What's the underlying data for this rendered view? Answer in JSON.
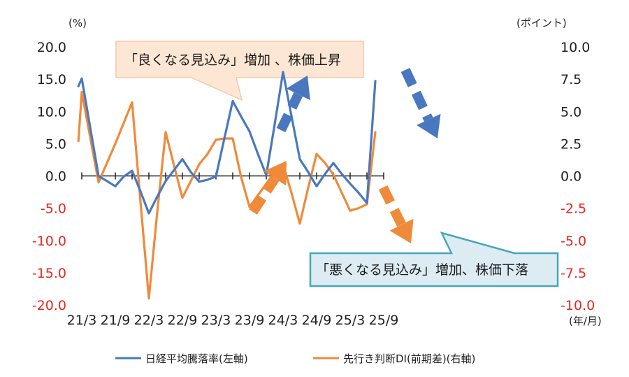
{
  "chart_data": {
    "type": "line",
    "title": "",
    "left_unit": "(%)",
    "right_unit": "(ポイント)",
    "x_unit": "(年/月)",
    "x_tick_labels": [
      "21/3",
      "21/9",
      "22/3",
      "22/9",
      "23/3",
      "23/9",
      "24/3",
      "24/9",
      "25/3",
      "25/9"
    ],
    "x_periods": [
      "21/3",
      "21/6",
      "21/9",
      "21/12",
      "22/3",
      "22/6",
      "22/9",
      "22/12",
      "23/3",
      "23/6",
      "23/9",
      "23/12",
      "24/3",
      "24/6",
      "24/9",
      "24/12",
      "25/3",
      "25/6",
      "25/9"
    ],
    "left_axis": {
      "ylim": [
        -20,
        20
      ],
      "ticks": [
        "20.0",
        "15.0",
        "10.0",
        "5.0",
        "0.0",
        "-5.0",
        "-10.0",
        "-15.0",
        "-20.0"
      ]
    },
    "right_axis": {
      "ylim": [
        -10,
        10
      ],
      "ticks": [
        "10.0",
        "7.5",
        "5.0",
        "2.5",
        "0.0",
        "-2.5",
        "-5.0",
        "-7.5",
        "-10.0"
      ]
    },
    "series": [
      {
        "name": "日経平均騰落率(左軸)",
        "axis": "left",
        "color": "#4a78c0",
        "x": [
          2.8,
          3.0,
          4.0,
          4.5,
          5.0,
          5.5,
          6.0,
          6.5,
          7.0,
          7.5,
          8.0,
          8.5,
          9.0,
          9.5,
          10.0,
          10.5,
          11.0,
          11.5,
          12.0,
          12.5,
          13.0,
          13.5,
          14.0,
          14.5,
          15.0,
          15.5,
          16.0,
          16.5,
          17.0,
          17.5,
          18.0,
          18.5,
          19.0,
          19.5,
          20.0,
          20.5
        ],
        "values": [
          13.9,
          15.1,
          0.0,
          -0.8,
          -1.6,
          -0.1,
          0.8,
          -2.4,
          -5.8,
          -3.2,
          -0.8,
          0.9,
          2.6,
          0.6,
          -0.9,
          -0.6,
          -0.1,
          5.8,
          11.6,
          9.2,
          6.9,
          3.4,
          0.1,
          8.0,
          16.1,
          9.3,
          2.6,
          0.6,
          -1.6,
          0.3,
          2.0,
          0.3,
          -1.2,
          -2.6,
          -4.2,
          14.7
        ]
      },
      {
        "name": "先行き判断DI(前期差)(右軸)",
        "axis": "right",
        "color": "#ef8a3a",
        "x": [
          2.8,
          3.0,
          4.0,
          5.0,
          6.0,
          6.5,
          7.0,
          7.5,
          8.0,
          8.5,
          9.0,
          9.5,
          10.0,
          10.5,
          11.0,
          11.5,
          12.0,
          12.5,
          13.0,
          13.5,
          14.0,
          14.5,
          15.0,
          15.5,
          16.0,
          16.5,
          17.0,
          17.5,
          18.0,
          18.5,
          19.0,
          19.5,
          20.0,
          20.5
        ],
        "values": [
          2.7,
          6.5,
          -0.5,
          2.5,
          5.7,
          -2.0,
          -9.5,
          -2.8,
          3.4,
          0.8,
          -1.7,
          -0.4,
          0.9,
          1.7,
          2.8,
          2.9,
          2.9,
          -0.1,
          -2.4,
          -1.5,
          -0.6,
          0.3,
          0.9,
          -1.3,
          -3.7,
          -0.9,
          1.7,
          1.0,
          0.1,
          -1.3,
          -2.7,
          -2.5,
          -2.2,
          3.4
        ]
      }
    ],
    "annotations": {
      "up_callout": "「良くなる見込み」増加 、株価上昇",
      "down_callout": "「悪くなる見込み」増加、株価下落"
    },
    "colors": {
      "nikkei": "#4a78c0",
      "di": "#ef8a3a",
      "left_tick_positive": "#1f1f1f",
      "left_tick_negative": "#e8261c",
      "up_callout_bg": "#fde7d4",
      "up_callout_border": "#f0c9a8",
      "down_callout_bg": "#dcecf2",
      "down_callout_border": "#45a6b9"
    },
    "grid": false,
    "legend_position": "bottom"
  }
}
